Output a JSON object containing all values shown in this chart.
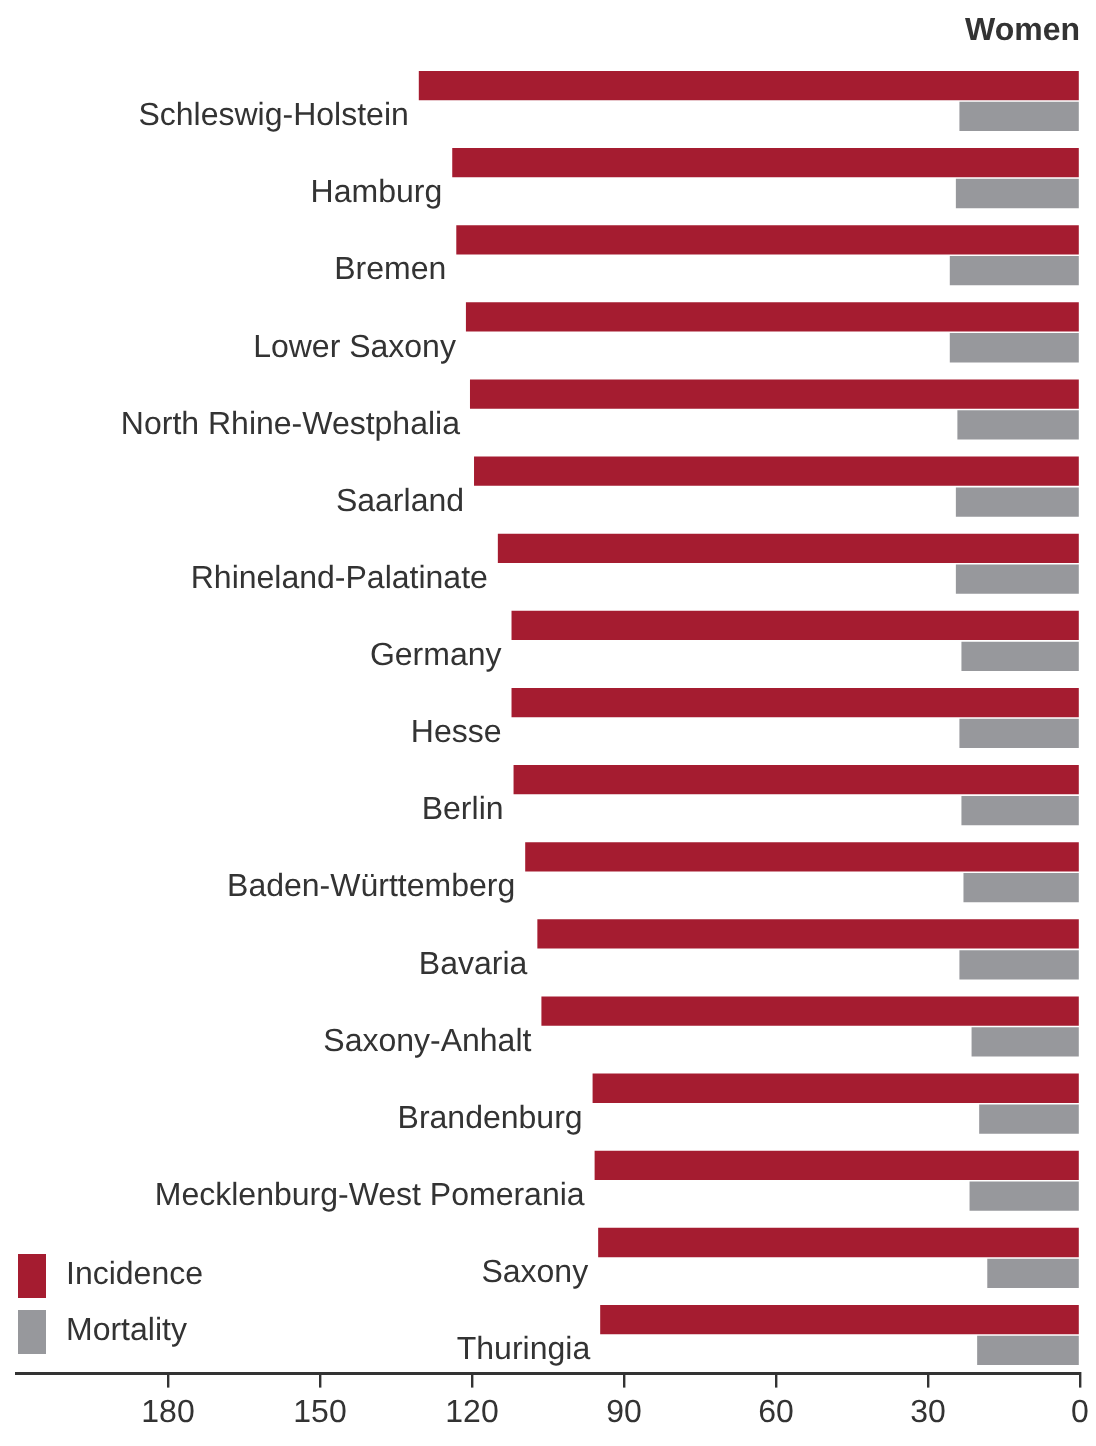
{
  "chart_data": {
    "type": "bar",
    "orientation": "horizontal",
    "title": "Women",
    "categories": [
      "Schleswig-Holstein",
      "Hamburg",
      "Bremen",
      "Lower Saxony",
      "North Rhine-Westphalia",
      "Saarland",
      "Rhineland-Palatinate",
      "Germany",
      "Hesse",
      "Berlin",
      "Baden-Württemberg",
      "Bavaria",
      "Saxony-Anhalt",
      "Brandenburg",
      "Mecklenburg-West Pomerania",
      "Saxony",
      "Thuringia"
    ],
    "series": [
      {
        "name": "Incidence",
        "color": "#a51c30",
        "values": [
          130.5,
          123.9,
          123.1,
          121.2,
          120.4,
          119.6,
          114.9,
          112.2,
          112.2,
          111.8,
          109.5,
          107.1,
          106.3,
          96.2,
          95.8,
          95.1,
          94.7
        ]
      },
      {
        "name": "Mortality",
        "color": "#97989c",
        "values": [
          23.8,
          24.5,
          25.7,
          25.7,
          24.2,
          24.5,
          24.5,
          23.4,
          23.8,
          23.4,
          23.0,
          23.8,
          21.4,
          19.9,
          21.8,
          18.3,
          20.3
        ]
      }
    ],
    "xlim": [
      210,
      0
    ],
    "xticks": [
      180,
      150,
      120,
      90,
      60,
      30,
      0
    ],
    "grid": false,
    "legend": "bottom left"
  }
}
